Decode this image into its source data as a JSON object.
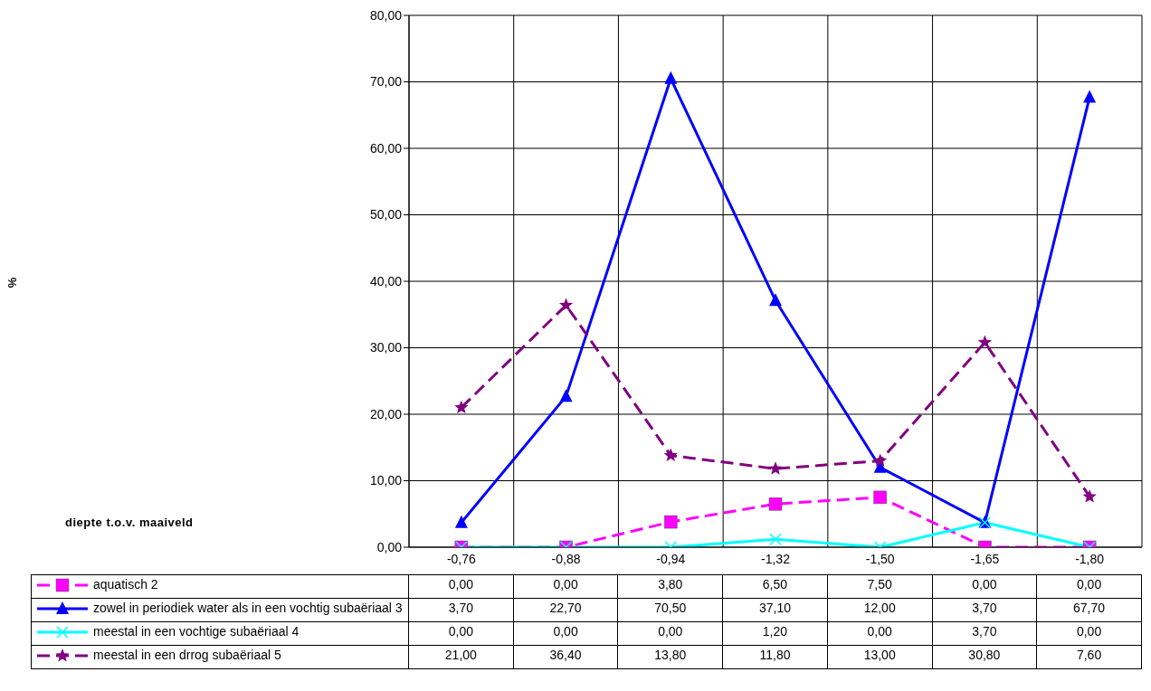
{
  "chart_data": {
    "type": "line",
    "annotations": [
      "diepte t.o.v. maaiveld",
      "%"
    ],
    "categories": [
      "-0,76",
      "-0,88",
      "-0,94",
      "-1,32",
      "-1,50",
      "-1,65",
      "-1,80"
    ],
    "series": [
      {
        "name": "aquatisch 2",
        "color": "#ff00ff",
        "marker": "square",
        "line_style": "dashed",
        "values": [
          0,
          0,
          3.8,
          6.5,
          7.5,
          0,
          0
        ],
        "value_labels": [
          "0,00",
          "0,00",
          "3,80",
          "6,50",
          "7,50",
          "0,00",
          "0,00"
        ]
      },
      {
        "name": "zowel in periodiek water als in een vochtig subaëriaal 3",
        "color": "#0000ff",
        "marker": "triangle",
        "line_style": "solid",
        "values": [
          3.7,
          22.7,
          70.5,
          37.1,
          12,
          3.7,
          67.7
        ],
        "value_labels": [
          "3,70",
          "22,70",
          "70,50",
          "37,10",
          "12,00",
          "3,70",
          "67,70"
        ]
      },
      {
        "name": "meestal in een vochtige subaëriaal 4",
        "color": "#00ffff",
        "marker": "cross",
        "line_style": "solid",
        "values": [
          0,
          0,
          0,
          1.2,
          0,
          3.7,
          0
        ],
        "value_labels": [
          "0,00",
          "0,00",
          "0,00",
          "1,20",
          "0,00",
          "3,70",
          "0,00"
        ]
      },
      {
        "name": "meestal in een drrog subaëriaal 5",
        "color": "#800080",
        "marker": "star",
        "line_style": "dashed",
        "values": [
          21,
          36.4,
          13.8,
          11.8,
          13,
          30.8,
          7.6
        ],
        "value_labels": [
          "21,00",
          "36,40",
          "13,80",
          "11,80",
          "13,00",
          "30,80",
          "7,60"
        ]
      }
    ],
    "ylim": [
      0,
      80
    ],
    "yticks": [
      {
        "value": 0,
        "label": "0,00"
      },
      {
        "value": 10,
        "label": "10,00"
      },
      {
        "value": 20,
        "label": "20,00"
      },
      {
        "value": 30,
        "label": "30,00"
      },
      {
        "value": 40,
        "label": "40,00"
      },
      {
        "value": 50,
        "label": "50,00"
      },
      {
        "value": 60,
        "label": "60,00"
      },
      {
        "value": 70,
        "label": "70,00"
      },
      {
        "value": 80,
        "label": "80,00"
      }
    ],
    "grid": true,
    "legend": "bottom"
  }
}
